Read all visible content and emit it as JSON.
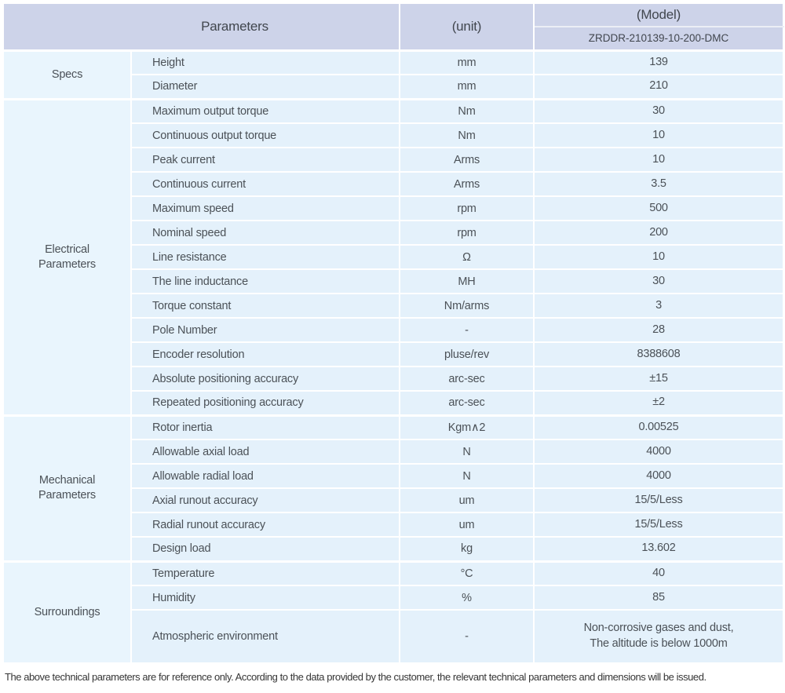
{
  "table": {
    "header": {
      "parameters_label": "Parameters",
      "unit_label": "(unit)",
      "model_label": "(Model)",
      "model_value": "ZRDDR-210139-10-200-DMC"
    },
    "sections": [
      {
        "name": "Specs",
        "rows": [
          {
            "param": "Height",
            "unit": "mm",
            "value": "139"
          },
          {
            "param": "Diameter",
            "unit": "mm",
            "value": "210"
          }
        ]
      },
      {
        "name": "Electrical\nParameters",
        "rows": [
          {
            "param": "Maximum output torque",
            "unit": "Nm",
            "value": "30"
          },
          {
            "param": "Continuous output torque",
            "unit": "Nm",
            "value": "10"
          },
          {
            "param": "Peak current",
            "unit": "Arms",
            "value": "10"
          },
          {
            "param": "Continuous current",
            "unit": "Arms",
            "value": "3.5"
          },
          {
            "param": "Maximum speed",
            "unit": "rpm",
            "value": "500"
          },
          {
            "param": "Nominal speed",
            "unit": "rpm",
            "value": "200"
          },
          {
            "param": "Line resistance",
            "unit": "Ω",
            "value": "10"
          },
          {
            "param": "The line inductance",
            "unit": "MH",
            "value": "30"
          },
          {
            "param": "Torque constant",
            "unit": "Nm/arms",
            "value": "3"
          },
          {
            "param": "Pole Number",
            "unit": "-",
            "value": "28"
          },
          {
            "param": "Encoder resolution",
            "unit": "pluse/rev",
            "value": "8388608"
          },
          {
            "param": "Absolute positioning accuracy",
            "unit": "arc-sec",
            "value": "±15"
          },
          {
            "param": "Repeated positioning accuracy",
            "unit": "arc-sec",
            "value": "±2"
          }
        ]
      },
      {
        "name": "Mechanical\nParameters",
        "rows": [
          {
            "param": "Rotor inertia",
            "unit": "Kgm∧2",
            "value": "0.00525"
          },
          {
            "param": "Allowable axial load",
            "unit": "N",
            "value": "4000"
          },
          {
            "param": "Allowable radial load",
            "unit": "N",
            "value": "4000"
          },
          {
            "param": "Axial runout accuracy",
            "unit": "um",
            "value": "15/5/Less"
          },
          {
            "param": "Radial runout accuracy",
            "unit": "um",
            "value": "15/5/Less"
          },
          {
            "param": "Design load",
            "unit": "kg",
            "value": "13.602"
          }
        ]
      },
      {
        "name": "Surroundings",
        "rows": [
          {
            "param": "Temperature",
            "unit": "°C",
            "value": "40"
          },
          {
            "param": "Humidity",
            "unit": "%",
            "value": "85"
          },
          {
            "param": "Atmospheric environment",
            "unit": "-",
            "value": "Non-corrosive gases and dust,\nThe altitude is below 1000m",
            "tall": true
          }
        ]
      }
    ]
  },
  "footer": {
    "note": "The above technical parameters are for reference only. According to the data provided by the customer, the relevant technical parameters and dimensions will be issued."
  },
  "colors": {
    "header_bg": "#cdd3e9",
    "cell_bg": "#e4f1fb",
    "category_bg": "#e9f5fd",
    "border": "#ffffff",
    "text": "#4b5157"
  }
}
